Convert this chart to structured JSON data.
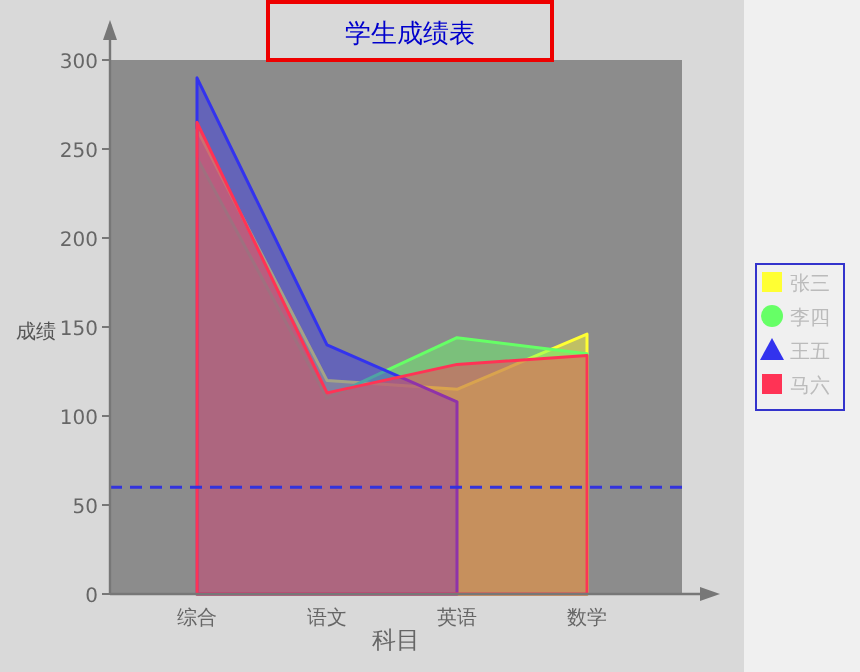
{
  "chart_data": {
    "type": "area",
    "title": "学生成绩表",
    "xlabel": "科目",
    "ylabel": "成绩",
    "categories": [
      "综合",
      "语文",
      "英语",
      "数学"
    ],
    "series": [
      {
        "name": "张三",
        "color": "#ffff33",
        "values": [
          261,
          120,
          115,
          146
        ]
      },
      {
        "name": "李四",
        "color": "#66ff66",
        "values": [
          245,
          110,
          144,
          135
        ]
      },
      {
        "name": "王五",
        "color": "#3333ee",
        "values": [
          290,
          140,
          108,
          null
        ]
      },
      {
        "name": "马六",
        "color": "#ff3355",
        "values": [
          265,
          113,
          129,
          134
        ]
      }
    ],
    "ylim": [
      0,
      300
    ],
    "yticks": [
      0,
      50,
      100,
      150,
      200,
      250,
      300
    ],
    "ref_lines": [
      {
        "axis": "y",
        "value": 60,
        "color": "#3333dd",
        "line_style": "dashed"
      }
    ],
    "grid": false,
    "legend": "right"
  }
}
